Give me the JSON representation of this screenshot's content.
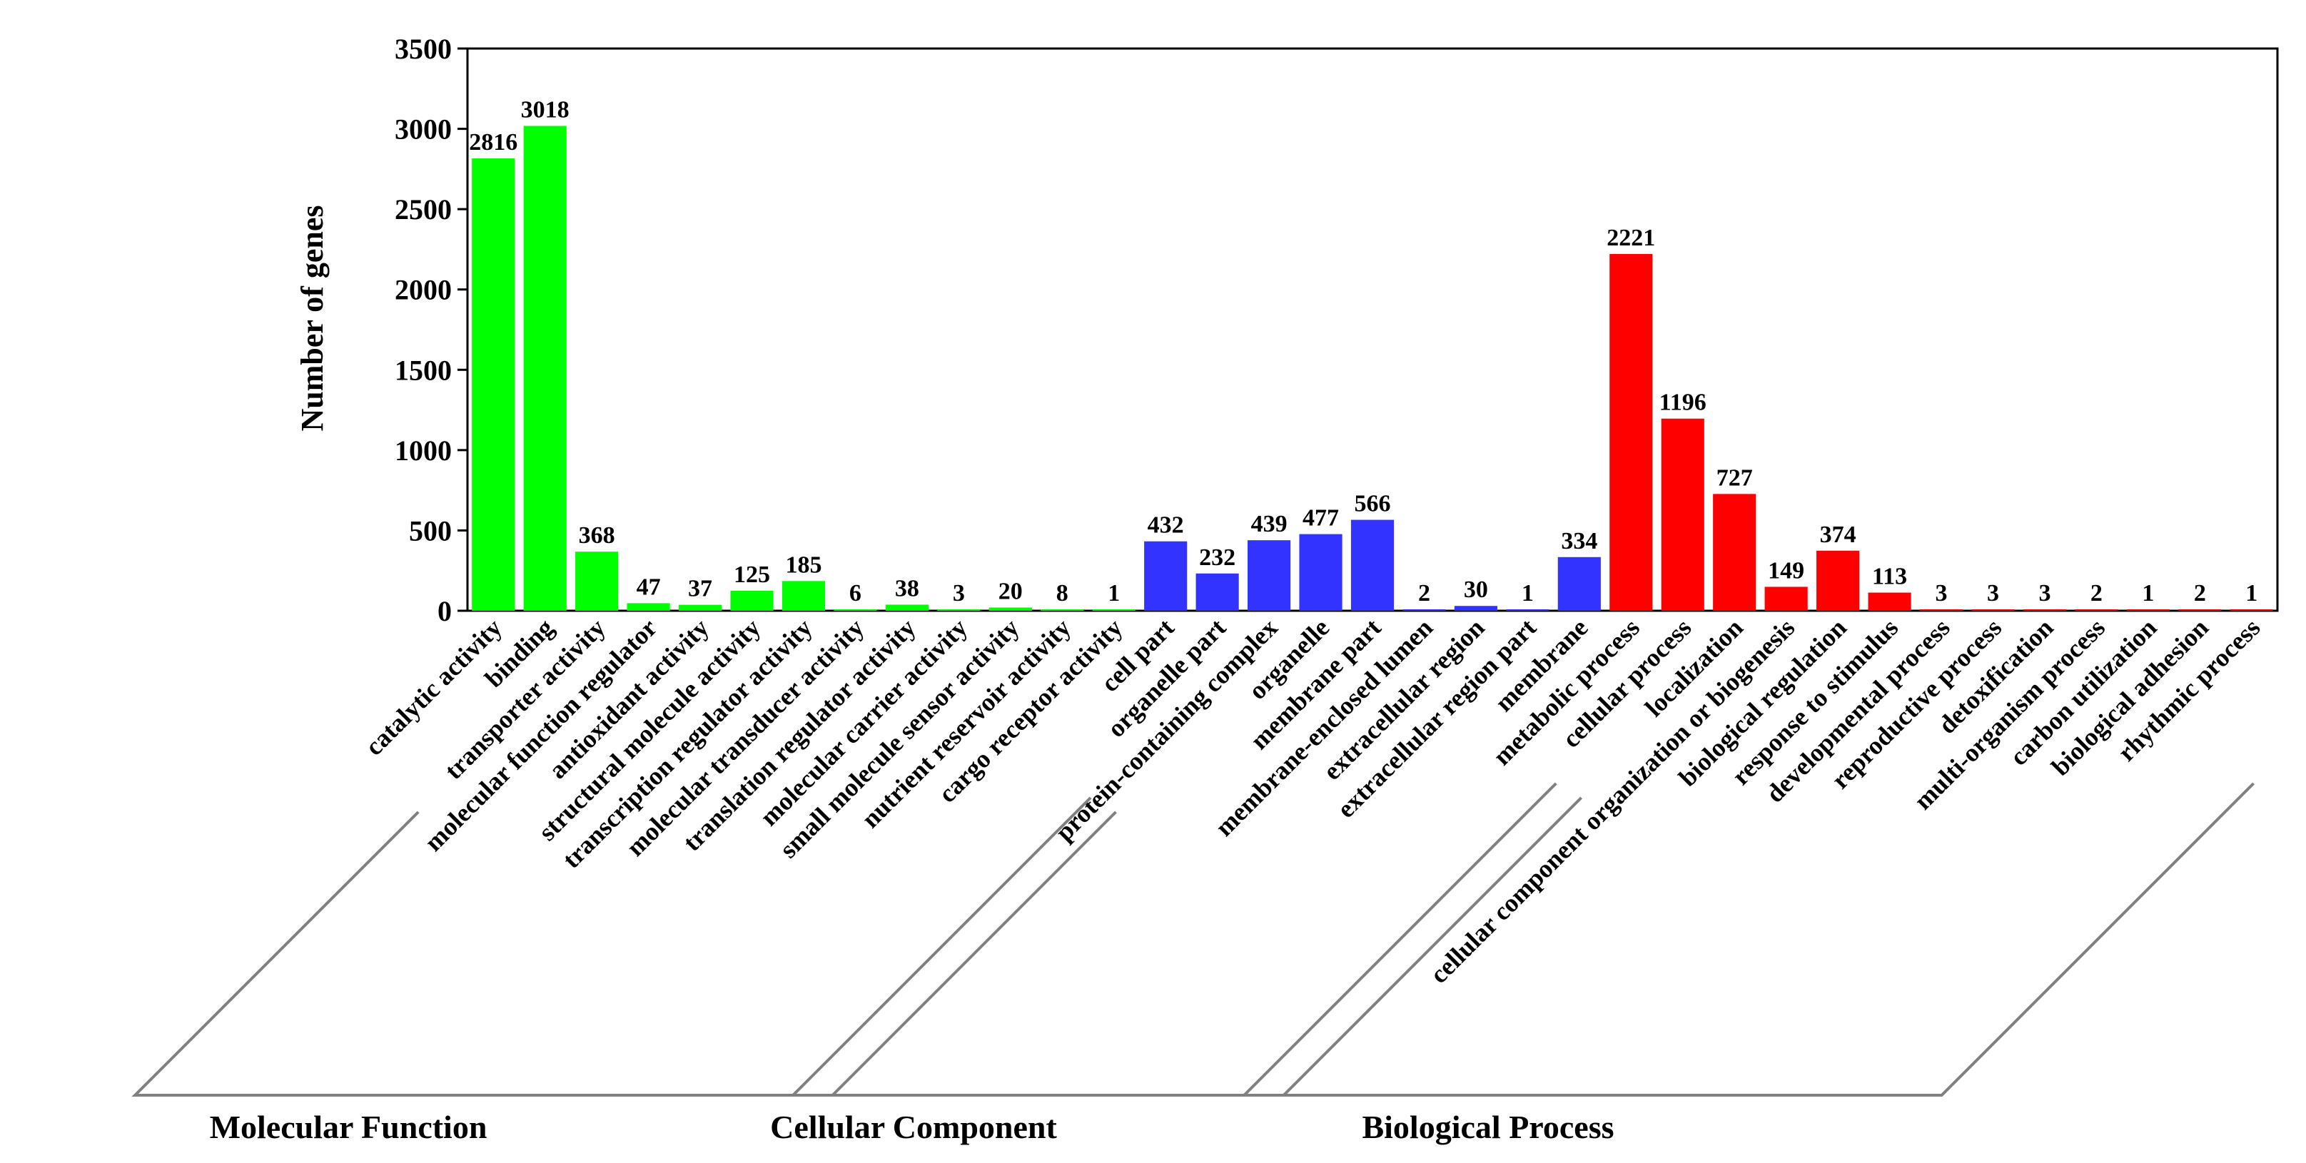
{
  "chart_data": {
    "type": "bar",
    "title": "",
    "xlabel": "",
    "ylabel": "Number of genes",
    "ylim": [
      0,
      3500
    ],
    "yticks": [
      0,
      500,
      1000,
      1500,
      2000,
      2500,
      3000,
      3500
    ],
    "grid": false,
    "categories": [
      "catalytic activity",
      "binding",
      "transporter activity",
      "molecular function regulator",
      "antioxidant activity",
      "structural molecule activity",
      "transcription regulator activity",
      "molecular transducer activity",
      "translation regulator activity",
      "molecular carrier activity",
      "small molecule sensor activity",
      "nutrient reservoir activity",
      "cargo receptor activity",
      "cell part",
      "organelle part",
      "protein-containing complex",
      "organelle",
      "membrane part",
      "membrane-enclosed lumen",
      "extracellular region",
      "extracellular region part",
      "membrane",
      "metabolic process",
      "cellular process",
      "localization",
      "cellular component organization or biogenesis",
      "biological regulation",
      "response to stimulus",
      "developmental process",
      "reproductive process",
      "detoxification",
      "multi-organism process",
      "carbon utilization",
      "biological adhesion",
      "rhythmic process"
    ],
    "values": [
      2816,
      3018,
      368,
      47,
      37,
      125,
      185,
      6,
      38,
      3,
      20,
      8,
      1,
      432,
      232,
      439,
      477,
      566,
      2,
      30,
      1,
      334,
      2221,
      1196,
      727,
      149,
      374,
      113,
      3,
      3,
      3,
      2,
      1,
      2,
      1
    ],
    "groups": [
      {
        "name": "Molecular Function",
        "color": "#00ff00",
        "start": 0,
        "end": 12
      },
      {
        "name": "Cellular Component",
        "color": "#3333ff",
        "start": 13,
        "end": 21
      },
      {
        "name": "Biological Process",
        "color": "#ff0000",
        "start": 22,
        "end": 34
      }
    ]
  },
  "colors": {
    "axis": "#000000",
    "bracket": "#808080"
  }
}
